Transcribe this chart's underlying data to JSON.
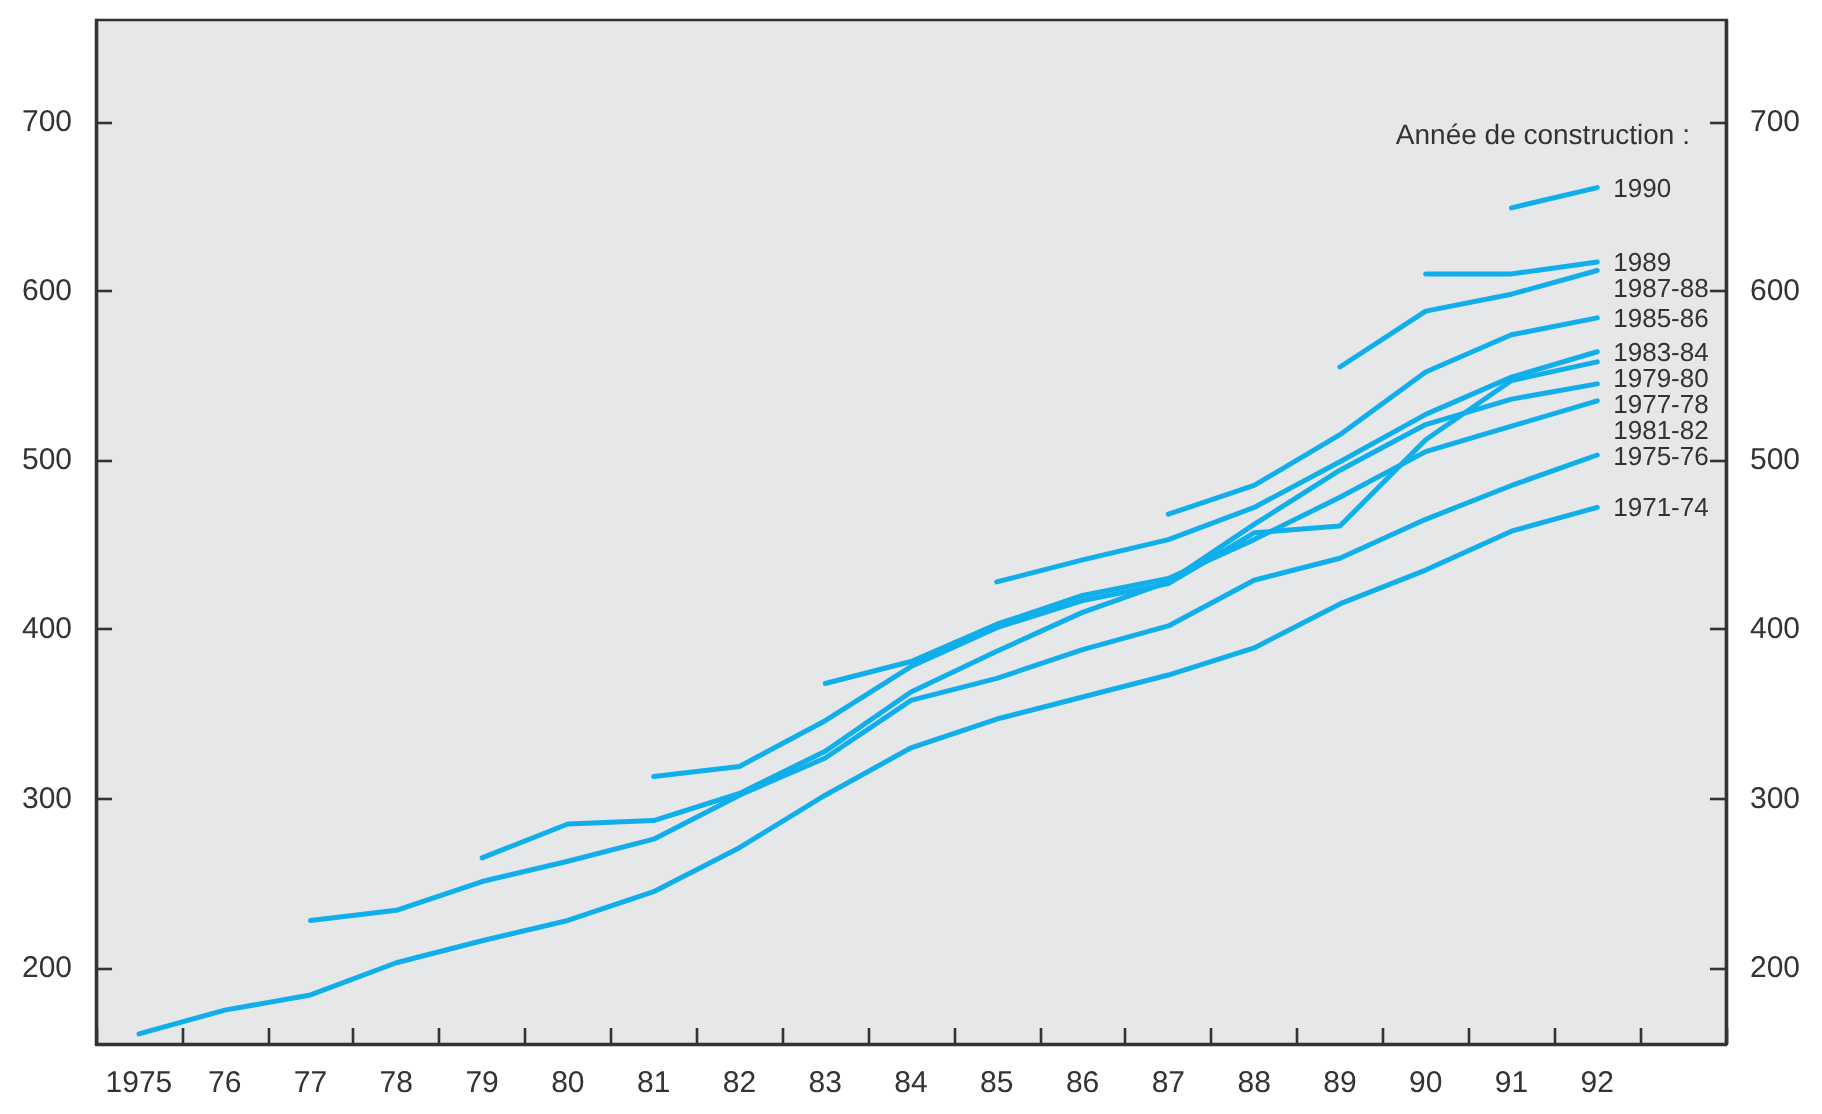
{
  "chart_data": {
    "type": "line",
    "legend_title": "Année de construction :",
    "categories": [
      "1975",
      "76",
      "77",
      "78",
      "79",
      "80",
      "81",
      "82",
      "83",
      "84",
      "85",
      "86",
      "87",
      "88",
      "89",
      "90",
      "91",
      "92",
      null
    ],
    "series": [
      {
        "name": "1990",
        "color": "#10aeea",
        "values": [
          null,
          null,
          null,
          null,
          null,
          null,
          null,
          null,
          null,
          null,
          null,
          null,
          null,
          null,
          null,
          null,
          649,
          661,
          null
        ]
      },
      {
        "name": "1989",
        "color": "#10aeea",
        "values": [
          null,
          null,
          null,
          null,
          null,
          null,
          null,
          null,
          null,
          null,
          null,
          null,
          null,
          null,
          null,
          610,
          610,
          617,
          null
        ]
      },
      {
        "name": "1987-88",
        "color": "#10aeea",
        "values": [
          null,
          null,
          null,
          null,
          null,
          null,
          null,
          null,
          null,
          null,
          null,
          null,
          null,
          null,
          555,
          588,
          598,
          612,
          null
        ]
      },
      {
        "name": "1985-86",
        "color": "#10aeea",
        "values": [
          null,
          null,
          null,
          null,
          null,
          null,
          null,
          null,
          null,
          null,
          null,
          null,
          468,
          485,
          515,
          552,
          574,
          584,
          null
        ]
      },
      {
        "name": "1983-84",
        "color": "#10aeea",
        "values": [
          null,
          null,
          null,
          null,
          null,
          null,
          null,
          null,
          null,
          null,
          428,
          441,
          453,
          472,
          499,
          527,
          549,
          564,
          null
        ]
      },
      {
        "name": "1979-80",
        "color": "#10aeea",
        "values": [
          null,
          null,
          null,
          null,
          null,
          null,
          313,
          319,
          346,
          378,
          401,
          417,
          427,
          457,
          461,
          512,
          547,
          558,
          null
        ]
      },
      {
        "name": "1977-78",
        "color": "#10aeea",
        "values": [
          null,
          null,
          null,
          null,
          265,
          285,
          287,
          303,
          328,
          363,
          387,
          410,
          428,
          462,
          494,
          521,
          536,
          545,
          null
        ]
      },
      {
        "name": "1981-82",
        "color": "#10aeea",
        "values": [
          null,
          null,
          null,
          null,
          null,
          null,
          null,
          null,
          368,
          381,
          403,
          420,
          430,
          453,
          478,
          505,
          520,
          535,
          null
        ]
      },
      {
        "name": "1975-76",
        "color": "#10aeea",
        "values": [
          null,
          null,
          228,
          234,
          251,
          263,
          276,
          302,
          324,
          358,
          371,
          388,
          402,
          429,
          442,
          465,
          485,
          503,
          null
        ]
      },
      {
        "name": "1971-74",
        "color": "#10aeea",
        "values": [
          161,
          175,
          184,
          203,
          216,
          228,
          245,
          271,
          302,
          330,
          347,
          360,
          373,
          389,
          415,
          435,
          458,
          472,
          null
        ]
      }
    ],
    "ylim": [
      155,
      760
    ],
    "yticks": [
      200,
      300,
      400,
      500,
      600,
      700
    ],
    "y2lim": [
      155,
      760
    ],
    "y2ticks": [
      200,
      300,
      400,
      500,
      600,
      700
    ]
  }
}
